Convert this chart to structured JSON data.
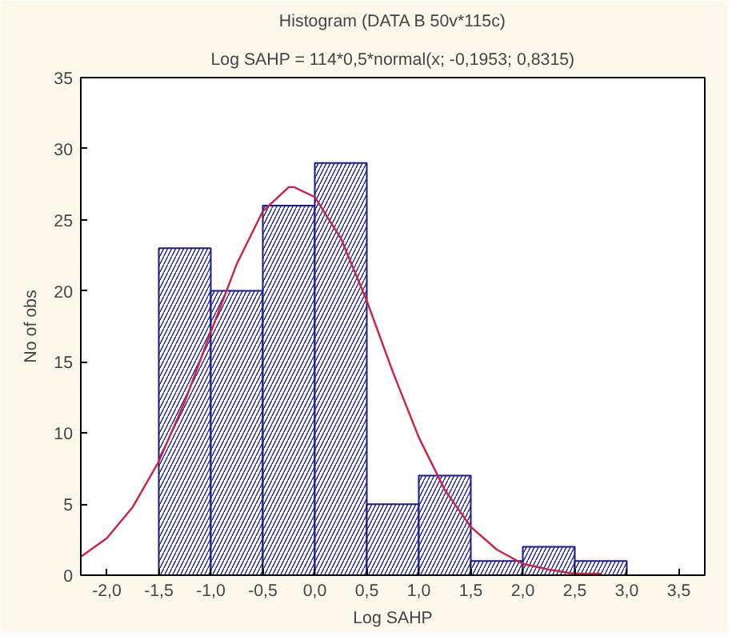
{
  "chart_data": {
    "type": "histogram",
    "title": "Histogram (DATA B 50v*115c)",
    "subtitle": "Log SAHP = 114*0,5*normal(x; -0,1953; 0,8315)",
    "xlabel": "Log SAHP",
    "ylabel": "No of obs",
    "bins": [
      -1.5,
      -1.0,
      -0.5,
      0.0,
      0.5,
      1.0,
      1.5,
      2.0,
      2.5,
      3.0
    ],
    "values": [
      23,
      20,
      26,
      29,
      5,
      7,
      1,
      2,
      1
    ],
    "color": "#1a1a8c",
    "series": [
      {
        "type": "line",
        "color": "#cc2244",
        "x": [
          -2.25,
          -2.0,
          -1.75,
          -1.5,
          -1.25,
          -1.0,
          -0.75,
          -0.5,
          -0.25,
          -0.2,
          0.0,
          0.25,
          0.5,
          0.75,
          1.0,
          1.25,
          1.5,
          1.75,
          2.0,
          2.25,
          2.5,
          2.75
        ],
        "values": [
          1.3,
          2.6,
          4.8,
          8.0,
          12.2,
          17.1,
          21.9,
          25.6,
          27.3,
          27.3,
          26.6,
          23.7,
          19.3,
          14.3,
          9.7,
          6.0,
          3.4,
          1.8,
          0.8,
          0.4,
          0.1,
          0.1
        ]
      }
    ],
    "xlim": [
      -2.25,
      3.75
    ],
    "xticks": [
      {
        "value": -2.0,
        "label": "-2,0"
      },
      {
        "value": -1.5,
        "label": "-1,5"
      },
      {
        "value": -1.0,
        "label": "-1,0"
      },
      {
        "value": -0.5,
        "label": "-0,5"
      },
      {
        "value": 0.0,
        "label": "0,0"
      },
      {
        "value": 0.5,
        "label": "0,5"
      },
      {
        "value": 1.0,
        "label": "1,0"
      },
      {
        "value": 1.5,
        "label": "1,5"
      },
      {
        "value": 2.0,
        "label": "2,0"
      },
      {
        "value": 2.5,
        "label": "2,5"
      },
      {
        "value": 3.0,
        "label": "3,0"
      },
      {
        "value": 3.5,
        "label": "3,5"
      }
    ],
    "ylim": [
      0,
      35
    ],
    "yticks": [
      0,
      5,
      10,
      15,
      20,
      25,
      30,
      35
    ],
    "grid": false
  }
}
